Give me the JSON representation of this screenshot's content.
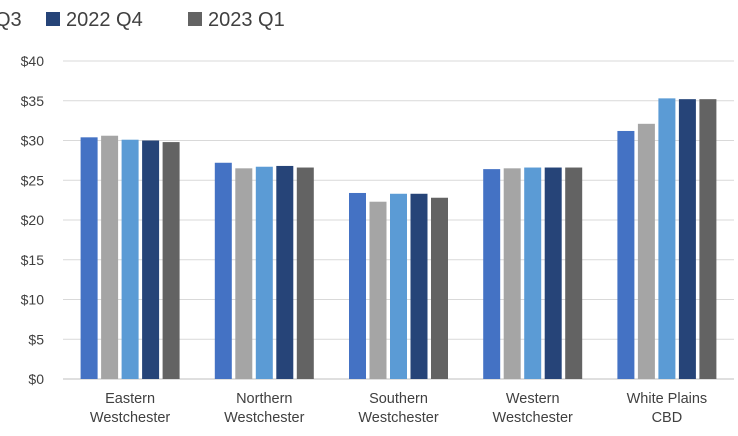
{
  "chart_data": {
    "type": "bar",
    "title": "",
    "xlabel": "",
    "ylabel": "",
    "ylim": [
      0,
      40
    ],
    "yticks": [
      0,
      5,
      10,
      15,
      20,
      25,
      30,
      35,
      40
    ],
    "ytick_labels": [
      "$0",
      "$5",
      "$10",
      "$15",
      "$20",
      "$25",
      "$30",
      "$35",
      "$40"
    ],
    "grid": true,
    "legend_position": "top",
    "categories": [
      [
        "Eastern",
        "Westchester"
      ],
      [
        "Northern",
        "Westchester"
      ],
      [
        "Southern",
        "Westchester"
      ],
      [
        "Western",
        "Westchester"
      ],
      [
        "White Plains",
        "CBD"
      ]
    ],
    "series": [
      {
        "name": "",
        "color": "#4472C4",
        "values": [
          30.4,
          27.2,
          23.4,
          26.4,
          31.2
        ]
      },
      {
        "name": "",
        "color": "#A5A5A5",
        "values": [
          30.6,
          26.5,
          22.3,
          26.5,
          32.1
        ]
      },
      {
        "name": "Q3",
        "color": "#5B9BD5",
        "values": [
          30.1,
          26.7,
          23.3,
          26.6,
          35.3
        ]
      },
      {
        "name": "2022 Q4",
        "color": "#264478",
        "values": [
          30.0,
          26.8,
          23.3,
          26.6,
          35.2
        ]
      },
      {
        "name": "2023 Q1",
        "color": "#636363",
        "values": [
          29.8,
          26.6,
          22.8,
          26.6,
          35.2
        ]
      }
    ]
  }
}
